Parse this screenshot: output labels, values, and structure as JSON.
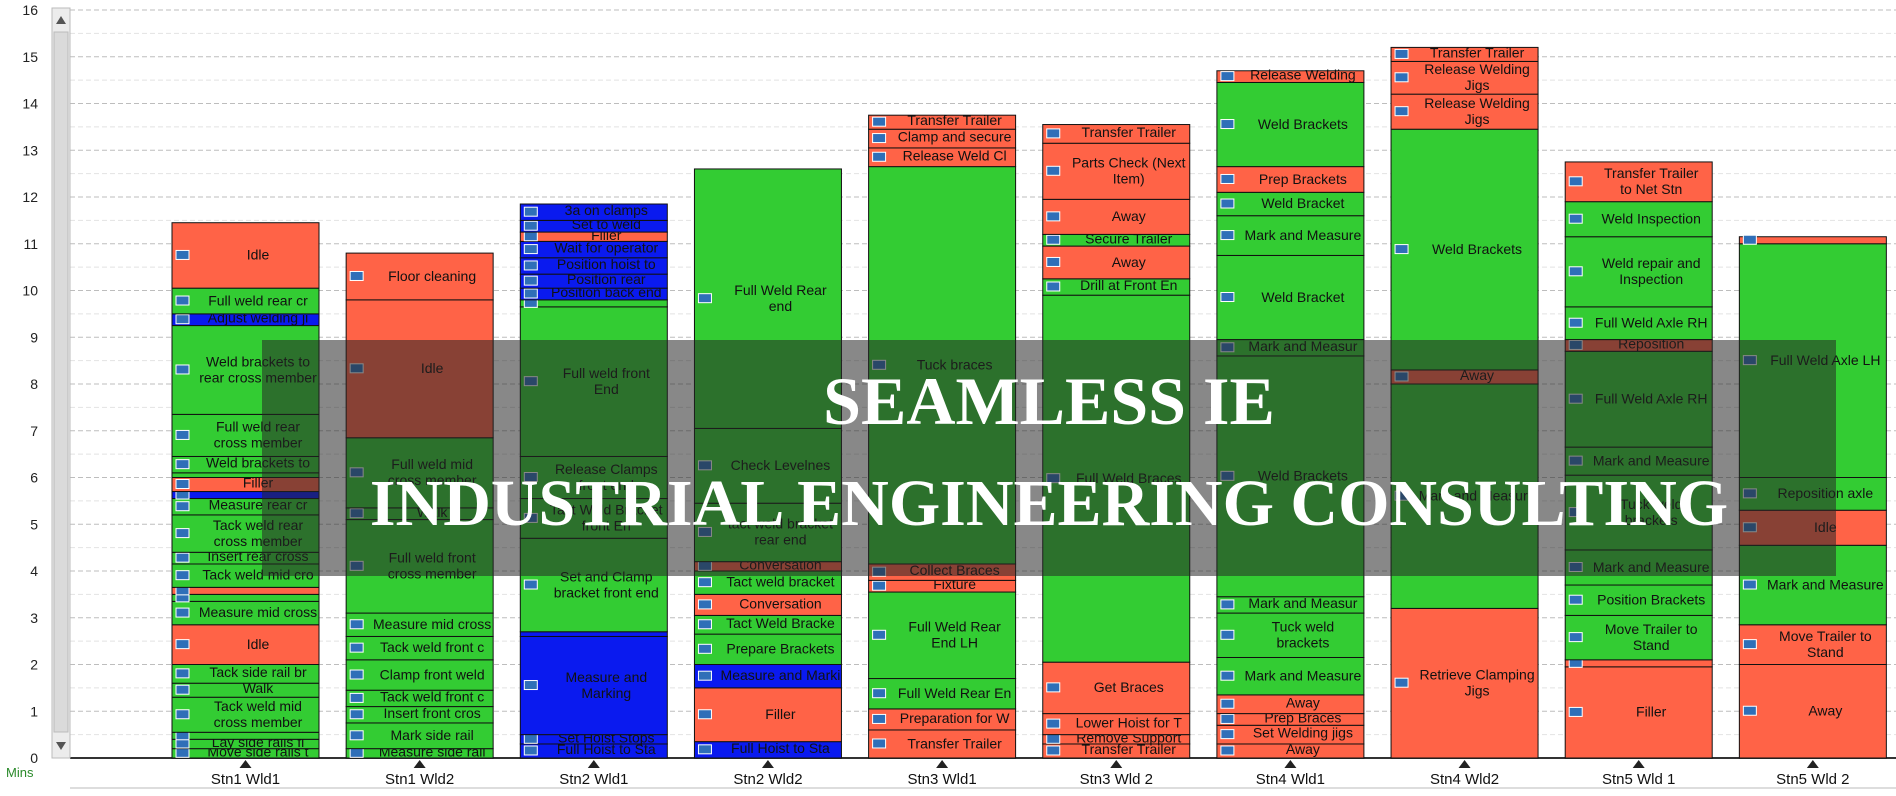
{
  "chart_data": {
    "type": "bar",
    "stacked": true,
    "units_label": "Mins",
    "ylim": [
      0,
      16
    ],
    "yticks": [
      0,
      1,
      2,
      3,
      4,
      5,
      6,
      7,
      8,
      9,
      10,
      11,
      12,
      13,
      14,
      15,
      16
    ],
    "grid": true,
    "categories": [
      "Stn1 Wld1",
      "Stn1 Wld2",
      "Stn2 Wld1",
      "Stn2 Wld2",
      "Stn3 Wld1",
      "Stn3 Wld 2",
      "Stn4 Wld1",
      "Stn4 Wld2",
      "Stn5 Wld 1",
      "Stn5 Wld 2"
    ],
    "colors": {
      "green": "#33cc33",
      "red": "#ff6347",
      "blue": "#0a1aef"
    },
    "stacks": [
      [
        {
          "label": "Move side rails to",
          "value": 0.2,
          "color": "green"
        },
        {
          "label": "Lay side rails flat",
          "value": 0.2,
          "color": "green"
        },
        {
          "label": "Walk",
          "value": 0.15,
          "color": "green"
        },
        {
          "label": "Tack weld mid cross member",
          "value": 0.75,
          "color": "green"
        },
        {
          "label": "Walk",
          "value": 0.3,
          "color": "green"
        },
        {
          "label": "Tack side rail bra",
          "value": 0.4,
          "color": "green"
        },
        {
          "label": "Idle",
          "value": 0.85,
          "color": "red"
        },
        {
          "label": "Measure mid cross member",
          "value": 0.5,
          "color": "green"
        },
        {
          "label": "Walk",
          "value": 0.15,
          "color": "green"
        },
        {
          "label": "",
          "value": 0.15,
          "color": "red"
        },
        {
          "label": "Tack weld mid cross member",
          "value": 0.5,
          "color": "green"
        },
        {
          "label": "Insert rear cross",
          "value": 0.25,
          "color": "green"
        },
        {
          "label": "Tack weld rear cross member",
          "value": 0.8,
          "color": "green"
        },
        {
          "label": "Measure rear cr",
          "value": 0.35,
          "color": "green"
        },
        {
          "label": "",
          "value": 0.15,
          "color": "blue"
        },
        {
          "label": "Filler",
          "value": 0.3,
          "color": "red"
        },
        {
          "label": "Walk",
          "value": 0.1,
          "color": "green"
        },
        {
          "label": "Weld brackets to",
          "value": 0.35,
          "color": "green"
        },
        {
          "label": "Full weld rear cross member",
          "value": 0.9,
          "color": "green"
        },
        {
          "label": "Weld brackets to rear cross member",
          "value": 1.9,
          "color": "green"
        },
        {
          "label": "Adjust welding jig",
          "value": 0.25,
          "color": "blue"
        },
        {
          "label": "Full weld rear cross member",
          "value": 0.55,
          "color": "green"
        },
        {
          "label": "Idle",
          "value": 1.4,
          "color": "red"
        }
      ],
      [
        {
          "label": "Measure side rail",
          "value": 0.2,
          "color": "green"
        },
        {
          "label": "Mark side rail",
          "value": 0.55,
          "color": "green"
        },
        {
          "label": "Insert front cross",
          "value": 0.35,
          "color": "green"
        },
        {
          "label": "Tack weld front cr",
          "value": 0.35,
          "color": "green"
        },
        {
          "label": "Clamp front weld fixture",
          "value": 0.65,
          "color": "green"
        },
        {
          "label": "Tack weld front cross member",
          "value": 0.5,
          "color": "green"
        },
        {
          "label": "Measure mid cross member",
          "value": 0.5,
          "color": "green"
        },
        {
          "label": "Full weld front cross member",
          "value": 2.0,
          "color": "green"
        },
        {
          "label": "Walk",
          "value": 0.25,
          "color": "green"
        },
        {
          "label": "Full weld mid cross member",
          "value": 1.5,
          "color": "green"
        },
        {
          "label": "Idle",
          "value": 2.95,
          "color": "red"
        },
        {
          "label": "Floor cleaning",
          "value": 1.0,
          "color": "red"
        }
      ],
      [
        {
          "label": "Full Hoist to Stati",
          "value": 0.3,
          "color": "blue"
        },
        {
          "label": "Set Hoist Stops",
          "value": 0.2,
          "color": "blue"
        },
        {
          "label": "Measure and Marking",
          "value": 2.1,
          "color": "blue"
        },
        {
          "label": "Set Clamp",
          "value": 0.1,
          "color": "blue"
        },
        {
          "label": "Set and Clamp bracket front end",
          "value": 2.0,
          "color": "green"
        },
        {
          "label": "Tact Weld Bracket front En",
          "value": 0.85,
          "color": "green"
        },
        {
          "label": "Release Clamps front end",
          "value": 0.9,
          "color": "green"
        },
        {
          "label": "Full weld front End",
          "value": 3.2,
          "color": "green"
        },
        {
          "label": "Release Clamp",
          "value": 0.15,
          "color": "green"
        },
        {
          "label": "Position back end",
          "value": 0.25,
          "color": "blue"
        },
        {
          "label": "Position rear",
          "value": 0.3,
          "color": "blue"
        },
        {
          "label": "Position hoist to",
          "value": 0.35,
          "color": "blue"
        },
        {
          "label": "Wait for operator",
          "value": 0.35,
          "color": "blue"
        },
        {
          "label": "Filler",
          "value": 0.2,
          "color": "red"
        },
        {
          "label": "Set to weld",
          "value": 0.25,
          "color": "blue"
        },
        {
          "label": "3a on clamps",
          "value": 0.35,
          "color": "blue"
        }
      ],
      [
        {
          "label": "Full Hoist to Stati",
          "value": 0.35,
          "color": "blue"
        },
        {
          "label": "Filler",
          "value": 1.15,
          "color": "red"
        },
        {
          "label": "Measure and Marking",
          "value": 0.5,
          "color": "blue"
        },
        {
          "label": "Prepare Brackets",
          "value": 0.65,
          "color": "green"
        },
        {
          "label": "Tact Weld Bracke",
          "value": 0.4,
          "color": "green"
        },
        {
          "label": "Conversation",
          "value": 0.45,
          "color": "red"
        },
        {
          "label": "Tact weld bracket rear end",
          "value": 0.5,
          "color": "green"
        },
        {
          "label": "Conversation",
          "value": 0.2,
          "color": "red"
        },
        {
          "label": "tact weld bracket rear end",
          "value": 1.25,
          "color": "green"
        },
        {
          "label": "Check Levelnes",
          "value": 1.6,
          "color": "green"
        },
        {
          "label": "Full Weld Rear end",
          "value": 5.55,
          "color": "green"
        }
      ],
      [
        {
          "label": "Transfer Trailer to Rack",
          "value": 0.6,
          "color": "red"
        },
        {
          "label": "Preparation for Welding",
          "value": 0.45,
          "color": "red"
        },
        {
          "label": "Full Weld Rear End RH",
          "value": 0.65,
          "color": "green"
        },
        {
          "label": "Full Weld Rear End LH",
          "value": 1.85,
          "color": "green"
        },
        {
          "label": "Fixture",
          "value": 0.25,
          "color": "red"
        },
        {
          "label": "Collect Braces",
          "value": 0.35,
          "color": "red"
        },
        {
          "label": "Tuck braces",
          "value": 8.5,
          "color": "green"
        },
        {
          "label": "Release Weld Cl",
          "value": 0.4,
          "color": "red"
        },
        {
          "label": "Clamp and secure",
          "value": 0.4,
          "color": "red"
        },
        {
          "label": "Transfer Trailer",
          "value": 0.3,
          "color": "red"
        }
      ],
      [
        {
          "label": "Transfer Trailer",
          "value": 0.3,
          "color": "red"
        },
        {
          "label": "Remove Support",
          "value": 0.2,
          "color": "red"
        },
        {
          "label": "Lower Hoist for Trailer",
          "value": 0.45,
          "color": "red"
        },
        {
          "label": "Get Braces",
          "value": 1.1,
          "color": "red"
        },
        {
          "label": "Full Weld Braces",
          "value": 7.85,
          "color": "green"
        },
        {
          "label": "Drill at Front End",
          "value": 0.35,
          "color": "green"
        },
        {
          "label": "Away",
          "value": 0.7,
          "color": "red"
        },
        {
          "label": "Secure Trailer",
          "value": 0.25,
          "color": "green"
        },
        {
          "label": "Away",
          "value": 0.75,
          "color": "red"
        },
        {
          "label": "Parts Check (Next Item)",
          "value": 1.2,
          "color": "red"
        },
        {
          "label": "Transfer Trailer",
          "value": 0.4,
          "color": "red"
        }
      ],
      [
        {
          "label": "Away",
          "value": 0.3,
          "color": "red"
        },
        {
          "label": "Set Welding jigs",
          "value": 0.4,
          "color": "red"
        },
        {
          "label": "Prep Braces",
          "value": 0.25,
          "color": "red"
        },
        {
          "label": "Away",
          "value": 0.4,
          "color": "red"
        },
        {
          "label": "Mark and Measure",
          "value": 0.8,
          "color": "green"
        },
        {
          "label": "Tuck weld brackets",
          "value": 0.95,
          "color": "green"
        },
        {
          "label": "Mark and Measur",
          "value": 0.35,
          "color": "green"
        },
        {
          "label": "Weld Brackets",
          "value": 5.15,
          "color": "green"
        },
        {
          "label": "Mark and Measur",
          "value": 0.35,
          "color": "green"
        },
        {
          "label": "Weld Bracket",
          "value": 1.8,
          "color": "green"
        },
        {
          "label": "Mark and Measure",
          "value": 0.85,
          "color": "green"
        },
        {
          "label": "Weld Bracket",
          "value": 0.5,
          "color": "green"
        },
        {
          "label": "Prep Brackets",
          "value": 0.55,
          "color": "red"
        },
        {
          "label": "Weld Brackets",
          "value": 1.8,
          "color": "green"
        },
        {
          "label": "Release Welding",
          "value": 0.25,
          "color": "red"
        }
      ],
      [
        {
          "label": "Retrieve Clamping Jigs",
          "value": 3.2,
          "color": "red"
        },
        {
          "label": "Mark and Measure",
          "value": 4.8,
          "color": "green"
        },
        {
          "label": "Away",
          "value": 0.3,
          "color": "red"
        },
        {
          "label": "Weld Brackets",
          "value": 5.15,
          "color": "green"
        },
        {
          "label": "Release Welding Jigs",
          "value": 0.75,
          "color": "red"
        },
        {
          "label": "Release Welding Jigs",
          "value": 0.7,
          "color": "red"
        },
        {
          "label": "Transfer Trailer t",
          "value": 0.3,
          "color": "red"
        }
      ],
      [
        {
          "label": "Filler",
          "value": 1.95,
          "color": "red"
        },
        {
          "label": "Away",
          "value": 0.15,
          "color": "red"
        },
        {
          "label": "Move Trailer to Stand",
          "value": 0.95,
          "color": "green"
        },
        {
          "label": "Position Brackets",
          "value": 0.65,
          "color": "green"
        },
        {
          "label": "Mark and Measure",
          "value": 0.75,
          "color": "green"
        },
        {
          "label": "Tuck weld brackets",
          "value": 1.6,
          "color": "green"
        },
        {
          "label": "Mark and Measure",
          "value": 0.6,
          "color": "green"
        },
        {
          "label": "Full Weld Axle RH",
          "value": 2.05,
          "color": "green"
        },
        {
          "label": "Reposition",
          "value": 0.25,
          "color": "red"
        },
        {
          "label": "Full Weld Axle RH",
          "value": 0.7,
          "color": "green"
        },
        {
          "label": "Weld repair and Inspection",
          "value": 1.5,
          "color": "green"
        },
        {
          "label": "Weld Inspection",
          "value": 0.75,
          "color": "green"
        },
        {
          "label": "Transfer Trailer to Net Stn",
          "value": 0.85,
          "color": "red"
        }
      ],
      [
        {
          "label": "Away",
          "value": 2.0,
          "color": "red"
        },
        {
          "label": "Move Trailer to Stand",
          "value": 0.85,
          "color": "red"
        },
        {
          "label": "Mark and Measure",
          "value": 1.7,
          "color": "green"
        },
        {
          "label": "Idle",
          "value": 0.75,
          "color": "red"
        },
        {
          "label": "Reposition axle",
          "value": 0.7,
          "color": "green"
        },
        {
          "label": "Full Weld Axle LH",
          "value": 5.0,
          "color": "green"
        },
        {
          "label": "Weld Inspection",
          "value": 0.15,
          "color": "red"
        }
      ]
    ]
  },
  "watermark": {
    "line1": "SEAMLESS IE",
    "line2": "INDUSTRIAL ENGINEERING CONSULTING"
  }
}
